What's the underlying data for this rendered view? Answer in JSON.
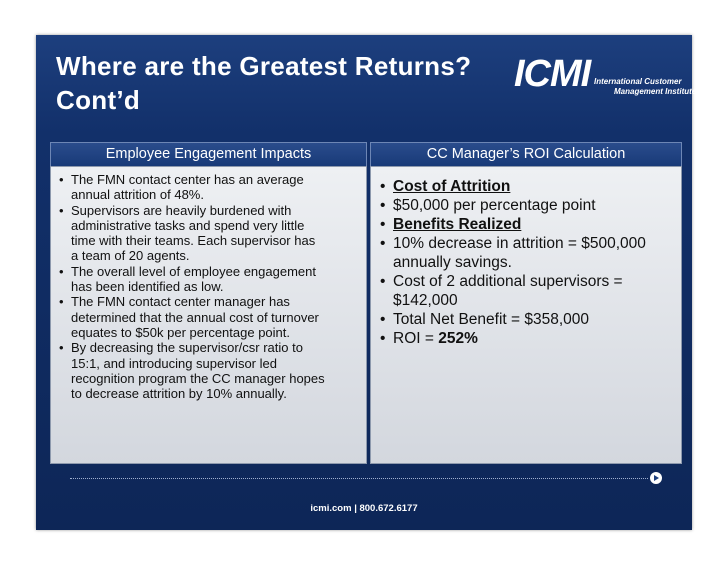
{
  "header": {
    "title_lines": [
      "Where are the Greatest Returns?",
      "Cont’d"
    ],
    "logo": {
      "mark": "ICMI",
      "line1": "International Customer",
      "line2": "Management Institute"
    }
  },
  "left_panel": {
    "heading": "Employee Engagement Impacts",
    "bullets": [
      "The FMN contact center has an average annual attrition of 48%.",
      "Supervisors are heavily burdened with administrative tasks and spend very little time with their teams. Each supervisor has a team of 20 agents.",
      "The overall level of employee engagement has been identified as low.",
      "The FMN contact center manager has determined that the annual cost of turnover equates to $50k per percentage point.",
      "By decreasing the supervisor/csr ratio to 15:1, and introducing supervisor led recognition program the CC manager hopes to decrease attrition by  10% annually."
    ]
  },
  "right_panel": {
    "heading": "CC Manager’s ROI Calculation",
    "bullets": [
      [
        {
          "text": "Cost of Attrition",
          "bold": true,
          "underline": true
        }
      ],
      [
        {
          "text": "$50,000 per percentage point"
        }
      ],
      [
        {
          "text": "Benefits Realized",
          "bold": true,
          "underline": true
        }
      ],
      [
        {
          "text": "10% decrease in attrition = $500,000 annually savings."
        }
      ],
      [
        {
          "text": "Cost of 2 additional supervisors = $142,000"
        }
      ],
      [
        {
          "text": "Total Net Benefit = $358,000"
        }
      ],
      [
        {
          "text": "ROI = "
        },
        {
          "text": "252%",
          "bold": true
        }
      ]
    ]
  },
  "footer": "icmi.com  |  800.672.6177"
}
